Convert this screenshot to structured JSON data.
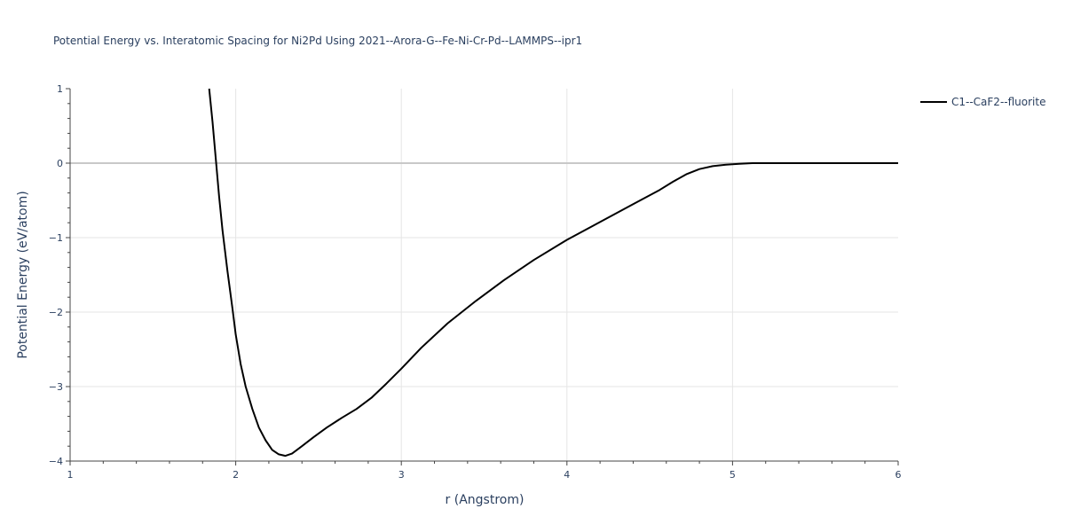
{
  "chart_data": {
    "type": "line",
    "title": "Potential Energy vs. Interatomic Spacing for Ni2Pd Using 2021--Arora-G--Fe-Ni-Cr-Pd--LAMMPS--ipr1",
    "xlabel": "r (Angstrom)",
    "ylabel": "Potential Energy (eV/atom)",
    "xlim": [
      1,
      6
    ],
    "ylim": [
      -4,
      1
    ],
    "xticks": [
      1,
      2,
      3,
      4,
      5,
      6
    ],
    "xtick_labels": [
      "1",
      "2",
      "3",
      "4",
      "5",
      "6"
    ],
    "yticks": [
      -4,
      -3,
      -2,
      -1,
      0,
      1
    ],
    "ytick_labels": [
      "−4",
      "−3",
      "−2",
      "−1",
      "0",
      "1"
    ],
    "grid": true,
    "legend_position": "top-right",
    "series": [
      {
        "name": "C1--CaF2--fluorite",
        "color": "#000000",
        "x": [
          1.84,
          1.86,
          1.88,
          1.9,
          1.92,
          1.95,
          1.98,
          2.0,
          2.03,
          2.06,
          2.1,
          2.14,
          2.18,
          2.22,
          2.26,
          2.3,
          2.34,
          2.4,
          2.47,
          2.55,
          2.64,
          2.73,
          2.82,
          2.91,
          3.0,
          3.12,
          3.28,
          3.45,
          3.62,
          3.8,
          4.0,
          4.2,
          4.4,
          4.56,
          4.64,
          4.72,
          4.8,
          4.88,
          4.96,
          5.04,
          5.12,
          5.3,
          5.5,
          5.8,
          6.0
        ],
        "y": [
          1.0,
          0.55,
          0.05,
          -0.45,
          -0.9,
          -1.45,
          -1.95,
          -2.3,
          -2.7,
          -3.0,
          -3.3,
          -3.55,
          -3.72,
          -3.85,
          -3.91,
          -3.93,
          -3.9,
          -3.8,
          -3.68,
          -3.55,
          -3.42,
          -3.3,
          -3.15,
          -2.96,
          -2.76,
          -2.48,
          -2.15,
          -1.85,
          -1.57,
          -1.3,
          -1.03,
          -0.79,
          -0.55,
          -0.36,
          -0.25,
          -0.15,
          -0.08,
          -0.04,
          -0.02,
          -0.01,
          0.0,
          0.0,
          0.0,
          0.0,
          0.0
        ]
      }
    ]
  }
}
